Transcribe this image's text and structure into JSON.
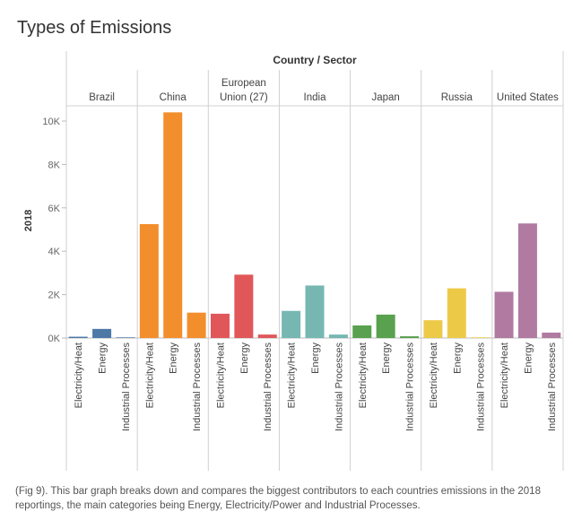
{
  "chart_data": {
    "type": "bar",
    "title": "Types of Emissions",
    "header_title": "Country / Sector",
    "ylabel": "2018",
    "ylim": [
      0,
      10500
    ],
    "yticks": [
      0,
      2000,
      4000,
      6000,
      8000,
      10000
    ],
    "ytick_labels": [
      "0K",
      "2K",
      "4K",
      "6K",
      "8K",
      "10K"
    ],
    "sectors": [
      "Electricity/Heat",
      "Energy",
      "Industrial Processes"
    ],
    "countries": [
      {
        "name": [
          "Brazil"
        ],
        "color": "#4e79a7",
        "values": [
          60,
          420,
          30
        ]
      },
      {
        "name": [
          "China"
        ],
        "color": "#f28e2b",
        "values": [
          5250,
          10400,
          1170
        ]
      },
      {
        "name": [
          "European",
          "Union (27)"
        ],
        "color": "#e15759",
        "values": [
          1120,
          2920,
          160
        ]
      },
      {
        "name": [
          "India"
        ],
        "color": "#76b7b2",
        "values": [
          1250,
          2420,
          160
        ]
      },
      {
        "name": [
          "Japan"
        ],
        "color": "#59a14f",
        "values": [
          580,
          1080,
          80
        ]
      },
      {
        "name": [
          "Russia"
        ],
        "color": "#edc948",
        "values": [
          820,
          2290,
          30
        ]
      },
      {
        "name": [
          "United States"
        ],
        "color": "#b07aa1",
        "values": [
          2130,
          5280,
          250
        ]
      }
    ],
    "grid": false
  },
  "caption": "(Fig 9).  This bar graph breaks down and compares the biggest contributors to each countries emissions in the 2018 reportings, the main categories being Energy, Electricity/Power and Industrial Processes."
}
